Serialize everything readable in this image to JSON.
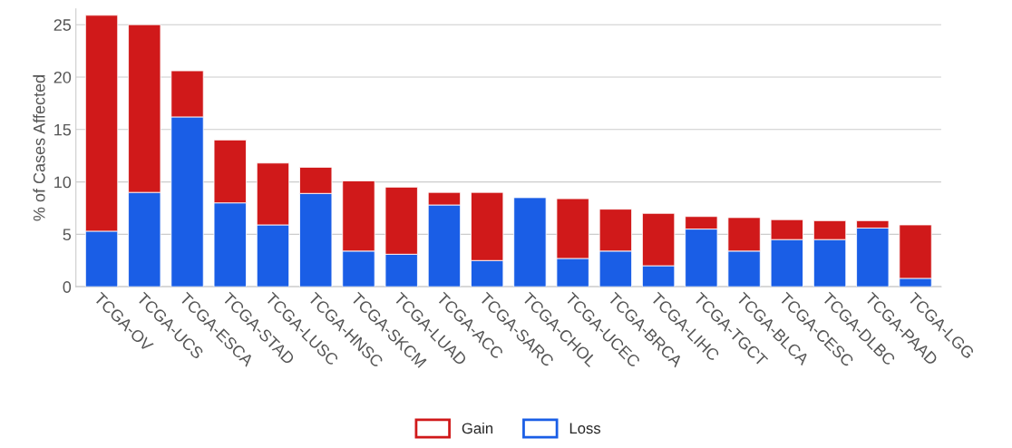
{
  "chart_data": {
    "type": "bar",
    "stacked": true,
    "ylabel": "% of Cases Affected",
    "categories": [
      "TCGA-OV",
      "TCGA-UCS",
      "TCGA-ESCA",
      "TCGA-STAD",
      "TCGA-LUSC",
      "TCGA-HNSC",
      "TCGA-SKCM",
      "TCGA-LUAD",
      "TCGA-ACC",
      "TCGA-SARC",
      "TCGA-CHOL",
      "TCGA-UCEC",
      "TCGA-BRCA",
      "TCGA-LIHC",
      "TCGA-TGCT",
      "TCGA-BLCA",
      "TCGA-CESC",
      "TCGA-DLBC",
      "TCGA-PAAD",
      "TCGA-LGG"
    ],
    "series": [
      {
        "name": "Loss",
        "color": "#1a5ee6",
        "values": [
          5.3,
          9.0,
          16.2,
          8.0,
          5.9,
          8.9,
          3.4,
          3.1,
          7.8,
          2.5,
          8.5,
          2.7,
          3.4,
          2.0,
          5.5,
          3.4,
          4.5,
          4.5,
          5.6,
          0.8
        ]
      },
      {
        "name": "Gain",
        "color": "#d0191a",
        "values": [
          20.6,
          16.0,
          4.4,
          6.0,
          5.9,
          2.5,
          6.7,
          6.4,
          1.2,
          6.5,
          null,
          5.7,
          4.0,
          5.0,
          1.2,
          3.2,
          1.9,
          1.8,
          0.7,
          5.1
        ]
      }
    ],
    "ylim": [
      0,
      26.5
    ],
    "yticks": [
      0,
      5,
      10,
      15,
      20,
      25
    ],
    "grid": "y",
    "legend": "bottom"
  }
}
